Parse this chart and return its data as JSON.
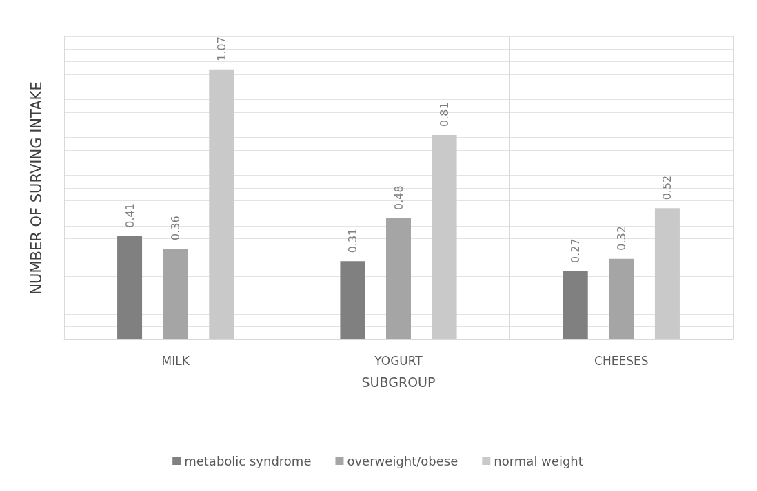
{
  "chart_data": {
    "type": "bar",
    "xlabel": "SUBGROUP",
    "ylabel": "NUMBER OF SURVING INTAKE",
    "categories": [
      "MILK",
      "YOGURT",
      "CHEESES"
    ],
    "series": [
      {
        "name": "metabolic syndrome",
        "color": "#808080",
        "values": [
          0.41,
          0.31,
          0.27
        ]
      },
      {
        "name": "overweight/obese",
        "color": "#a5a5a5",
        "values": [
          0.36,
          0.48,
          0.32
        ]
      },
      {
        "name": "normal weight",
        "color": "#c9c9c9",
        "values": [
          1.07,
          0.81,
          0.52
        ]
      }
    ],
    "ylim": [
      0,
      1.2
    ],
    "yticks": [
      {
        "value": 0,
        "label": null
      },
      {
        "value": 0.05,
        "label": null
      },
      {
        "value": 0.1,
        "label": null
      },
      {
        "value": 0.15,
        "label": null
      },
      {
        "value": 0.2,
        "label": null
      },
      {
        "value": 0.25,
        "label": null
      },
      {
        "value": 0.3,
        "label": null
      },
      {
        "value": 0.35,
        "label": null
      },
      {
        "value": 0.4,
        "label": null
      },
      {
        "value": 0.45,
        "label": null
      },
      {
        "value": 0.5,
        "label": null
      },
      {
        "value": 0.55,
        "label": null
      },
      {
        "value": 0.6,
        "label": null
      },
      {
        "value": 0.65,
        "label": null
      },
      {
        "value": 0.7,
        "label": null
      },
      {
        "value": 0.75,
        "label": null
      },
      {
        "value": 0.8,
        "label": null
      },
      {
        "value": 0.85,
        "label": null
      },
      {
        "value": 0.9,
        "label": null
      },
      {
        "value": 0.95,
        "label": null
      },
      {
        "value": 1.0,
        "label": null
      },
      {
        "value": 1.05,
        "label": null
      },
      {
        "value": 1.1,
        "label": null
      },
      {
        "value": 1.15,
        "label": null
      },
      {
        "value": 1.2,
        "label": null
      }
    ],
    "tick_labels": "x",
    "grid": true,
    "legend": "bottom",
    "data_labels": true
  }
}
